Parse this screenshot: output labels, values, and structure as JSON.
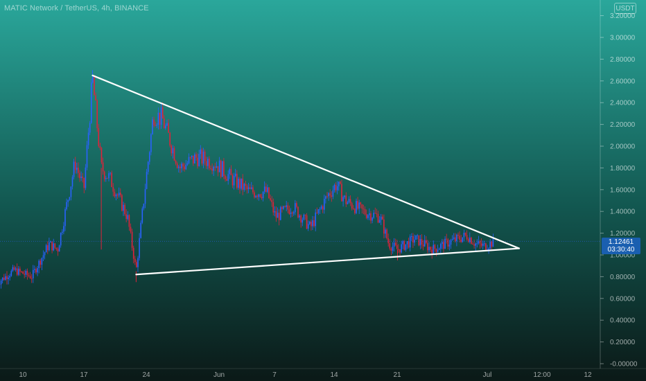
{
  "header": {
    "title": "MATIC Network / TetherUS, 4h, BINANCE",
    "currency": "USDT"
  },
  "last_price": {
    "value": "1.12461",
    "countdown": "03:30:40"
  },
  "colors": {
    "background_top": "#2aa79b",
    "background_bottom": "#0b1917",
    "up_candle": "#2962ff",
    "down_candle": "#e0223a",
    "trendline": "#ffffff",
    "price_tag": "#1a5fb0"
  },
  "chart_data": {
    "type": "candlestick",
    "title": "MATIC Network / TetherUS, 4h, BINANCE",
    "yaxis": {
      "ticks": [
        "3.20000",
        "3.00000",
        "2.80000",
        "2.60000",
        "2.40000",
        "2.20000",
        "2.00000",
        "1.80000",
        "1.60000",
        "1.40000",
        "1.20000",
        "1.00000",
        "0.80000",
        "0.60000",
        "0.40000",
        "0.20000",
        "-0.00000"
      ],
      "range": [
        0.0,
        3.2
      ],
      "position": "right"
    },
    "xaxis": {
      "ticks": [
        "10",
        "17",
        "24",
        "Jun",
        "7",
        "14",
        "21",
        "Jul",
        "12:00",
        "12"
      ]
    },
    "approx_close_path": [
      {
        "date": "May 7",
        "close": 0.74
      },
      {
        "date": "May 9",
        "close": 0.86
      },
      {
        "date": "May 11",
        "close": 0.8
      },
      {
        "date": "May 13",
        "close": 1.1
      },
      {
        "date": "May 14",
        "close": 1.05
      },
      {
        "date": "May 16",
        "close": 1.85
      },
      {
        "date": "May 17",
        "close": 1.6
      },
      {
        "date": "May 18",
        "close": 2.62
      },
      {
        "date": "May 19",
        "close": 1.8
      },
      {
        "date": "May 20",
        "close": 1.7
      },
      {
        "date": "May 22",
        "close": 1.35
      },
      {
        "date": "May 23",
        "close": 0.85
      },
      {
        "date": "May 24",
        "close": 1.6
      },
      {
        "date": "May 25",
        "close": 2.3
      },
      {
        "date": "May 26",
        "close": 2.25
      },
      {
        "date": "May 28",
        "close": 1.8
      },
      {
        "date": "May 30",
        "close": 1.9
      },
      {
        "date": "Jun 1",
        "close": 1.85
      },
      {
        "date": "Jun 3",
        "close": 1.7
      },
      {
        "date": "Jun 5",
        "close": 1.58
      },
      {
        "date": "Jun 7",
        "close": 1.58
      },
      {
        "date": "Jun 8",
        "close": 1.35
      },
      {
        "date": "Jun 10",
        "close": 1.45
      },
      {
        "date": "Jun 12",
        "close": 1.25
      },
      {
        "date": "Jun 14",
        "close": 1.55
      },
      {
        "date": "Jun 15",
        "close": 1.65
      },
      {
        "date": "Jun 16",
        "close": 1.5
      },
      {
        "date": "Jun 18",
        "close": 1.4
      },
      {
        "date": "Jun 20",
        "close": 1.35
      },
      {
        "date": "Jun 21",
        "close": 1.1
      },
      {
        "date": "Jun 22",
        "close": 1.05
      },
      {
        "date": "Jun 24",
        "close": 1.15
      },
      {
        "date": "Jun 26",
        "close": 1.05
      },
      {
        "date": "Jun 28",
        "close": 1.12
      },
      {
        "date": "Jun 30",
        "close": 1.18
      },
      {
        "date": "Jul 1",
        "close": 1.1
      },
      {
        "date": "Jul 2",
        "close": 1.08
      },
      {
        "date": "Jul 3",
        "close": 1.12
      }
    ],
    "spikes": [
      {
        "date": "May 19",
        "low": 1.05
      },
      {
        "date": "May 23",
        "low": 0.75
      },
      {
        "date": "May 18",
        "high": 2.7
      },
      {
        "date": "Jun 22",
        "low": 0.95
      }
    ],
    "annotations": {
      "upper_trendline": {
        "from": {
          "date": "May 18",
          "price": 2.65
        },
        "to": {
          "date": "Jul 5",
          "price": 1.06
        }
      },
      "lower_trendline": {
        "from": {
          "date": "May 23",
          "price": 0.82
        },
        "to": {
          "date": "Jul 5",
          "price": 1.06
        }
      }
    },
    "current_price_line": 1.12461,
    "grid": false,
    "legend": "none"
  }
}
